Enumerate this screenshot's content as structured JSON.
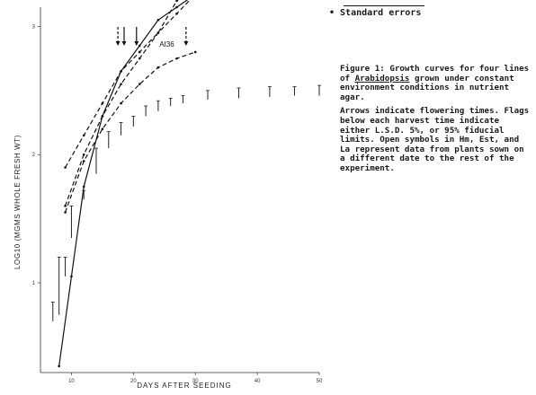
{
  "legend": {
    "text": "• Standard errors"
  },
  "caption": {
    "paragraph1_lead": "Figure 1:",
    "paragraph1_pre": " Growth curves for four lines of ",
    "paragraph1_species": "Arabidopsis",
    "paragraph1_post": " grown under constant environment conditions in nutrient agar.",
    "paragraph2": "Arrows indicate flowering times. Flags below each harvest time indicate either L.S.D. 5%, or 95% fiducial limits. Open symbols in Hm, Est, and La represent data from plants sown on a different date to the rest of the experiment."
  },
  "chart_data": {
    "type": "line",
    "xlabel": "DAYS AFTER SEEDING",
    "ylabel": "LOG10 (MGMS WHOLE FRESH WT)",
    "xlim": [
      5,
      50
    ],
    "ylim": [
      0.3,
      3.15
    ],
    "x_ticks": [
      10,
      20,
      30,
      40,
      50
    ],
    "y_ticks": [
      1,
      2,
      3
    ],
    "grid": false,
    "series": [
      {
        "name": "HM",
        "style": "dashed",
        "x": [
          9,
          12,
          15,
          18,
          21,
          24,
          27,
          30,
          33,
          36,
          39
        ],
        "y": [
          1.9,
          2.15,
          2.4,
          2.65,
          2.8,
          2.95,
          3.2,
          3.3,
          3.45,
          3.5,
          3.6
        ]
      },
      {
        "name": "EST",
        "style": "solid",
        "x": [
          8,
          10,
          12,
          15,
          18,
          21,
          24,
          27,
          30,
          33,
          36,
          39,
          42,
          45
        ],
        "y": [
          0.35,
          1.05,
          1.75,
          2.3,
          2.65,
          2.85,
          3.05,
          3.15,
          3.25,
          3.3,
          3.35,
          3.32,
          3.3,
          3.32
        ]
      },
      {
        "name": "LA",
        "style": "dashed",
        "x": [
          9,
          12,
          15,
          18,
          21,
          24,
          27,
          30,
          33
        ],
        "y": [
          1.6,
          2.0,
          2.3,
          2.55,
          2.75,
          2.95,
          3.1,
          3.25,
          3.33
        ]
      },
      {
        "name": "AI36",
        "style": "dashed",
        "x": [
          9,
          12,
          15,
          18,
          21,
          24,
          27,
          30
        ],
        "y": [
          1.55,
          1.95,
          2.2,
          2.4,
          2.55,
          2.68,
          2.75,
          2.8
        ]
      }
    ],
    "flags": [
      {
        "x": 7,
        "y_low": 0.7,
        "y_high": 0.85
      },
      {
        "x": 8,
        "y_low": 0.75,
        "y_high": 1.2
      },
      {
        "x": 9,
        "y_low": 1.05,
        "y_high": 1.2
      },
      {
        "x": 10,
        "y_low": 1.35,
        "y_high": 1.6
      },
      {
        "x": 12,
        "y_low": 1.65,
        "y_high": 1.72
      },
      {
        "x": 14,
        "y_low": 1.85,
        "y_high": 2.05
      },
      {
        "x": 16,
        "y_low": 2.05,
        "y_high": 2.18
      },
      {
        "x": 18,
        "y_low": 2.15,
        "y_high": 2.25
      },
      {
        "x": 20,
        "y_low": 2.22,
        "y_high": 2.3
      },
      {
        "x": 22,
        "y_low": 2.3,
        "y_high": 2.38
      },
      {
        "x": 24,
        "y_low": 2.34,
        "y_high": 2.42
      },
      {
        "x": 26,
        "y_low": 2.38,
        "y_high": 2.44
      },
      {
        "x": 28,
        "y_low": 2.4,
        "y_high": 2.46
      },
      {
        "x": 32,
        "y_low": 2.43,
        "y_high": 2.5
      },
      {
        "x": 37,
        "y_low": 2.44,
        "y_high": 2.52
      },
      {
        "x": 42,
        "y_low": 2.45,
        "y_high": 2.53
      },
      {
        "x": 46,
        "y_low": 2.46,
        "y_high": 2.53
      },
      {
        "x": 50,
        "y_low": 2.46,
        "y_high": 2.54
      }
    ],
    "flowering_arrows": [
      {
        "x": 17.5,
        "style": "dashed"
      },
      {
        "x": 18.5,
        "style": "solid"
      },
      {
        "x": 20.5,
        "style": "solid"
      },
      {
        "x": 28.5,
        "style": "dashed"
      }
    ]
  }
}
